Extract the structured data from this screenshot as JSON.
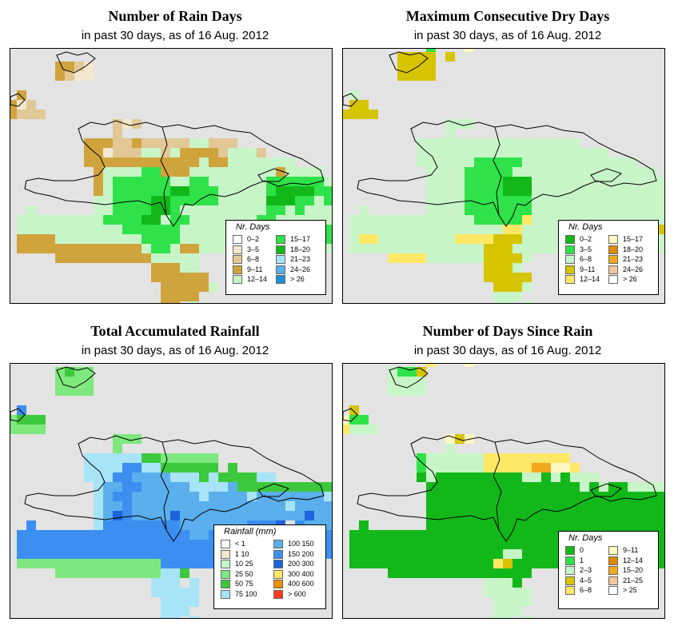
{
  "panels": [
    {
      "title": "Number of Rain Days",
      "subtitle": "in past 30 days, as of  16 Aug. 2012",
      "legend_title": "Nr. Days",
      "legend": [
        {
          "label": "0–2",
          "color": "#ffffff"
        },
        {
          "label": "3–5",
          "color": "#f3e7cf"
        },
        {
          "label": "6–8",
          "color": "#e2c896"
        },
        {
          "label": "9–11",
          "color": "#cfa43c"
        },
        {
          "label": "12–14",
          "color": "#c8f5c8"
        },
        {
          "label": "15–17",
          "color": "#2fe24a"
        },
        {
          "label": "18–20",
          "color": "#12b81a"
        },
        {
          "label": "21–23",
          "color": "#a8e4f8"
        },
        {
          "label": "24–26",
          "color": "#5aafec"
        },
        {
          "label": "> 26",
          "color": "#1e8fd6"
        }
      ],
      "palette": "#e3e3e3|#ffffff|#f3e7cf|#e2c896|#cfa43c|#c8f5c8|#2fe24a|#12b81a|#a8e4f8|#5aafec",
      "grid": [
        "................................................",
        "...........................................4....",
        ".....4432.......................................",
        ".....4322.......................................",
        ".................................................",
        ".4...............................................",
        "423..............................................",
        "4333.............................................",
        "...........323...................................",
        "...........3........................................",
        "........4443343333355333.........................",
        "........4423335535444435553.......................",
        "........4444444444445445555555....................",
        ".........455556644455555555545555.................",
        ".........45666666556655555566666655...............",
        ".........45666666776665555567777666555...........",
        ".........55666677666665555577766566555...........",
        "..5......55666677655555555566565556666..........",
        ".555555555666677566555555566555555665...........",
        ".5555555555566666655555555556665666666...........",
        ".44445555555556666555555555555556665............",
        ".4444444444444566544555555555555.5..............",
        ".....444444444455555...........................",
        "...............44455..........................",
        "...............444444..........................",
        "................444445.........................",
        "................4444...........................",
        "................44.5..........................."
      ]
    },
    {
      "title": "Maximum Consecutive Dry Days",
      "subtitle": "in past 30 days, as of  16 Aug. 2012",
      "legend_title": "Nr. Days",
      "legend": [
        {
          "label": "0–2",
          "color": "#12b81a"
        },
        {
          "label": "3–5",
          "color": "#2fe24a"
        },
        {
          "label": "6–8",
          "color": "#c8f5c8"
        },
        {
          "label": "9–11",
          "color": "#d6c400"
        },
        {
          "label": "12–14",
          "color": "#ffe866"
        },
        {
          "label": "15–17",
          "color": "#fff8c0"
        },
        {
          "label": "18–20",
          "color": "#e08a00"
        },
        {
          "label": "21–23",
          "color": "#f2a81e"
        },
        {
          "label": "24–26",
          "color": "#f6c6a0"
        },
        {
          "label": "> 26",
          "color": "#ffffff"
        }
      ],
      "palette": "#e3e3e3|#12b81a|#2fe24a|#c8f5c8|#d6c400|#ffe866|#fff8c0|#e08a00|#f2a81e|#f6c6a0|#ffffff",
      "grid": [
        ".........2...6...................................",
        "......4444.4.....................................",
        "......4444.......................................",
        "......4444.......................................",
        ".................................................",
        ".3...............................................",
        ".44..............................................",
        "4444.............................................",
        "...........333...................................",
        "...........3.....................................",
        "........33333333333333333.........................",
        "........33333333333333333333.......................",
        "........33333322222333333333333...................",
        ".........333322222333333333333333.................",
        ".........3333222211133333333333333333.............",
        ".........333322221113333333333333333333...........",
        ".........333322222223333333333333333333...........",
        "..3......33332222222333333333333333333.4..........",
        ".3333333333333222225333333333333333333344.........",
        ".3333333333333333553333333333333344333333.........",
        ".35533333333555544433333333333333333.3............",
        ".3333333333333344433333333333333.3...............",
        ".....555533333344443..........................",
        "...............4443..........................",
        "...............44444..........................",
        "................4443..........................",
        "................333...........................",
        "................33.3..........................."
      ]
    },
    {
      "title": "Total Accumulated Rainfall",
      "subtitle": "in past 30 days, as of  16 Aug. 2012",
      "legend_title": "Rainfall (mm)",
      "legend": [
        {
          "label": "< 1",
          "color": "#ffffff"
        },
        {
          "label": "1     10",
          "color": "#f3e7cf"
        },
        {
          "label": "10    25",
          "color": "#c8f5c8"
        },
        {
          "label": "25    50",
          "color": "#7ee87e"
        },
        {
          "label": "50    75",
          "color": "#3cc83c"
        },
        {
          "label": "75   100",
          "color": "#a8e4f8"
        },
        {
          "label": "100  150",
          "color": "#5aafec"
        },
        {
          "label": "150  200",
          "color": "#3c8ff0"
        },
        {
          "label": "200  300",
          "color": "#1e64dc"
        },
        {
          "label": "300  400",
          "color": "#ffe866"
        },
        {
          "label": "400  600",
          "color": "#f29000"
        },
        {
          "label": "> 600",
          "color": "#ff3a1e"
        }
      ],
      "palette": "#e3e3e3|#ffffff|#f3e7cf|#c8f5c8|#7ee87e|#3cc83c|#a8e4f8|#5aafec|#3c8ff0|#1e64dc|#ffe866|#f29000|#ff3a1e",
      "grid": [
        "...............................................",
        ".....4544........................................",
        ".....4444........................................",
        ".....4444........................................",
        ".................................................",
        ".8...............................................",
        "4555.............................................",
        "4444.............................................",
        "...........444...................................",
        "...........4.....................................",
        "........66666655444444..........................",
        "........66668866555555.5.........................",
        "........66688777766656555566......................",
        ".........6778877777666675555555555................",
        ".........67887777777677776777777766................",
        ".........677877777777777777776777778..............",
        ".........679877779777777777777797779..............",
        "..8......68888888877777778889.877788..............",
        ".8888888888888888887788888888888888888............",
        ".8888888888888888888888888888888888888............",
        ".88888888888888888888888888888888888.8............",
        ".44444444444444488888888888888888.8..............",
        ".....44444444444665..........................",
        "...............666.6..........................",
        "...............66666..........................",
        "................6666..........................",
        "................666...........................",
        "................66.6..........................."
      ]
    },
    {
      "title": "Number of Days Since Rain",
      "subtitle": "in past 30 days, as of  16 Aug. 2012",
      "legend_title": "Nr. Days",
      "legend": [
        {
          "label": "0",
          "color": "#12b81a"
        },
        {
          "label": "1",
          "color": "#2fe24a"
        },
        {
          "label": "2–3",
          "color": "#c8f5c8"
        },
        {
          "label": "4–5",
          "color": "#d6c400"
        },
        {
          "label": "6–8",
          "color": "#ffe866"
        },
        {
          "label": "9–11",
          "color": "#fff8c0"
        },
        {
          "label": "12–14",
          "color": "#e08a00"
        },
        {
          "label": "15–20",
          "color": "#f2a81e"
        },
        {
          "label": "21–25",
          "color": "#f6c6a0"
        },
        {
          "label": "> 25",
          "color": "#ffffff"
        }
      ],
      "palette": "#e3e3e3|#12b81a|#2fe24a|#c8f5c8|#d6c400|#ffe866|#fff8c0|#e08a00|#f2a81e|#f6c6a0|#ffffff",
      "grid": [
        ".........5...6....................................",
        ".....3224.......................................",
        ".....3333.......................................",
        ".....3333.......................................",
        ".................................................",
        ".4...............................................",
        "622..............................................",
        "5333.............................................",
        "...........646...................................",
        "...........3.....................................",
        "........2333333555555555..........................",
        "........23333335555588665.........................",
        "........1311111111133131333......................",
        ".........1111111111111111313113333................",
        ".........1111111111111111111111111................",
        ".........111111111111111111111111113366...........",
        ".........1111111111111111111111111111133..........",
        "..1......111111111111111111111111111111111........",
        ".1111111111111111111111111111111111111111........",
        ".1111111111111111111111111111111111111111.3.......",
        ".111111111111111133111111111111111111113..........",
        ".1111111111111115411111111111111111.3..............",
        ".....111111111111111...........................",
        "...............3331..........................",
        "...............33333..........................",
        "................3333..........................",
        "................333...........................",
        "................33.3..........................."
      ]
    }
  ]
}
